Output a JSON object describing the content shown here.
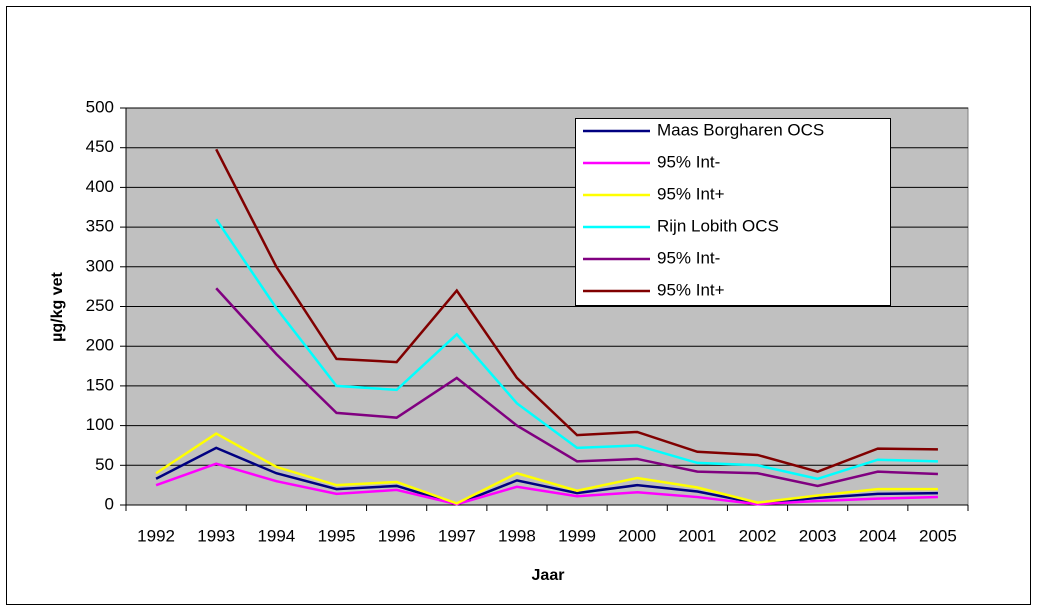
{
  "chart_data": {
    "type": "line",
    "x_label": "Jaar",
    "y_label": "µg/kg vet",
    "categories": [
      "1992",
      "1993",
      "1994",
      "1995",
      "1996",
      "1997",
      "1998",
      "1999",
      "2000",
      "2001",
      "2002",
      "2003",
      "2004",
      "2005"
    ],
    "ylim": [
      0,
      500
    ],
    "yticks": [
      0,
      50,
      100,
      150,
      200,
      250,
      300,
      350,
      400,
      450,
      500
    ],
    "grid": true,
    "series": [
      {
        "name": "Maas Borgharen OCS",
        "color": "#000080",
        "values": [
          33,
          72,
          40,
          20,
          24,
          1,
          31,
          15,
          25,
          17,
          2,
          9,
          14,
          15
        ]
      },
      {
        "name": "95% Int-",
        "color": "#ff00ff",
        "values": [
          25,
          52,
          30,
          14,
          19,
          1,
          23,
          11,
          16,
          10,
          1,
          5,
          8,
          10
        ]
      },
      {
        "name": "95% Int+",
        "color": "#ffff00",
        "values": [
          40,
          90,
          48,
          25,
          29,
          2,
          40,
          18,
          34,
          22,
          3,
          12,
          20,
          20
        ]
      },
      {
        "name": "Rijn Lobith OCS",
        "color": "#00ffff",
        "values": [
          null,
          360,
          248,
          150,
          145,
          215,
          128,
          72,
          75,
          53,
          50,
          33,
          57,
          55
        ]
      },
      {
        "name": "95% Int-",
        "color": "#800080",
        "values": [
          null,
          273,
          190,
          116,
          110,
          160,
          100,
          55,
          58,
          42,
          40,
          24,
          42,
          39
        ]
      },
      {
        "name": "95% Int+",
        "color": "#800000",
        "values": [
          null,
          448,
          300,
          184,
          180,
          270,
          160,
          88,
          92,
          67,
          63,
          42,
          71,
          70
        ]
      }
    ]
  }
}
